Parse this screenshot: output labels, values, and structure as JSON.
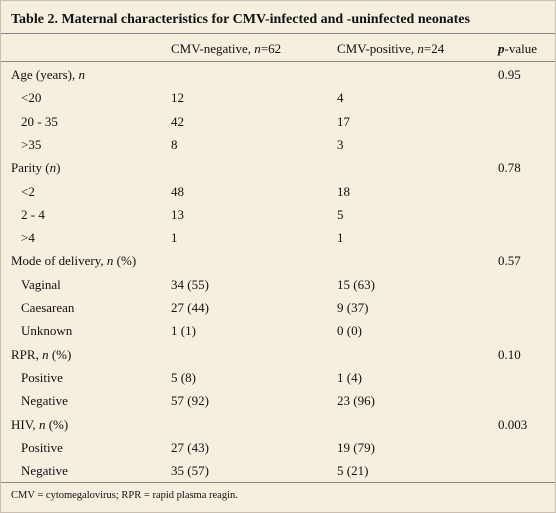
{
  "caption": "Table 2. Maternal characteristics for CMV-infected and -uninfected neonates",
  "headers": {
    "col1_prefix": "CMV-negative, ",
    "col1_n": "n",
    "col1_suffix": "=62",
    "col2_prefix": "CMV-positive, ",
    "col2_n": "n",
    "col2_suffix": "=24",
    "col3_p": "p",
    "col3_suffix": "-value"
  },
  "rows": [
    {
      "label": "Age (years), ",
      "label_i": "n",
      "label_tail": "",
      "neg": "",
      "pos": "",
      "p": "0.95",
      "indent": false
    },
    {
      "label": "<20",
      "neg": "12",
      "pos": "4",
      "p": "",
      "indent": true
    },
    {
      "label": "20 - 35",
      "neg": "42",
      "pos": "17",
      "p": "",
      "indent": true
    },
    {
      "label": ">35",
      "neg": "8",
      "pos": "3",
      "p": "",
      "indent": true
    },
    {
      "label": "Parity (",
      "label_i": "n",
      "label_tail": ")",
      "neg": "",
      "pos": "",
      "p": "0.78",
      "indent": false
    },
    {
      "label": "<2",
      "neg": "48",
      "pos": "18",
      "p": "",
      "indent": true
    },
    {
      "label": "2 - 4",
      "neg": "13",
      "pos": "5",
      "p": "",
      "indent": true
    },
    {
      "label": ">4",
      "neg": "1",
      "pos": "1",
      "p": "",
      "indent": true
    },
    {
      "label": "Mode of delivery, ",
      "label_i": "n",
      "label_tail": " (%)",
      "neg": "",
      "pos": "",
      "p": "0.57",
      "indent": false
    },
    {
      "label": "Vaginal",
      "neg": "34 (55)",
      "pos": "15 (63)",
      "p": "",
      "indent": true
    },
    {
      "label": "Caesarean",
      "neg": "27 (44)",
      "pos": "9 (37)",
      "p": "",
      "indent": true
    },
    {
      "label": "Unknown",
      "neg": "1 (1)",
      "pos": "0 (0)",
      "p": "",
      "indent": true
    },
    {
      "label": "RPR, ",
      "label_i": "n",
      "label_tail": " (%)",
      "neg": "",
      "pos": "",
      "p": "0.10",
      "indent": false
    },
    {
      "label": "Positive",
      "neg": "5 (8)",
      "pos": "1 (4)",
      "p": "",
      "indent": true
    },
    {
      "label": "Negative",
      "neg": "57 (92)",
      "pos": "23 (96)",
      "p": "",
      "indent": true
    },
    {
      "label": "HIV, ",
      "label_i": "n",
      "label_tail": " (%)",
      "neg": "",
      "pos": "",
      "p": "0.003",
      "indent": false
    },
    {
      "label": "Positive",
      "neg": "27 (43)",
      "pos": "19 (79)",
      "p": "",
      "indent": true
    },
    {
      "label": "Negative",
      "neg": "35 (57)",
      "pos": "5 (21)",
      "p": "",
      "indent": true
    }
  ],
  "footnote": "CMV = cytomegalovirus; RPR = rapid plasma reagin."
}
